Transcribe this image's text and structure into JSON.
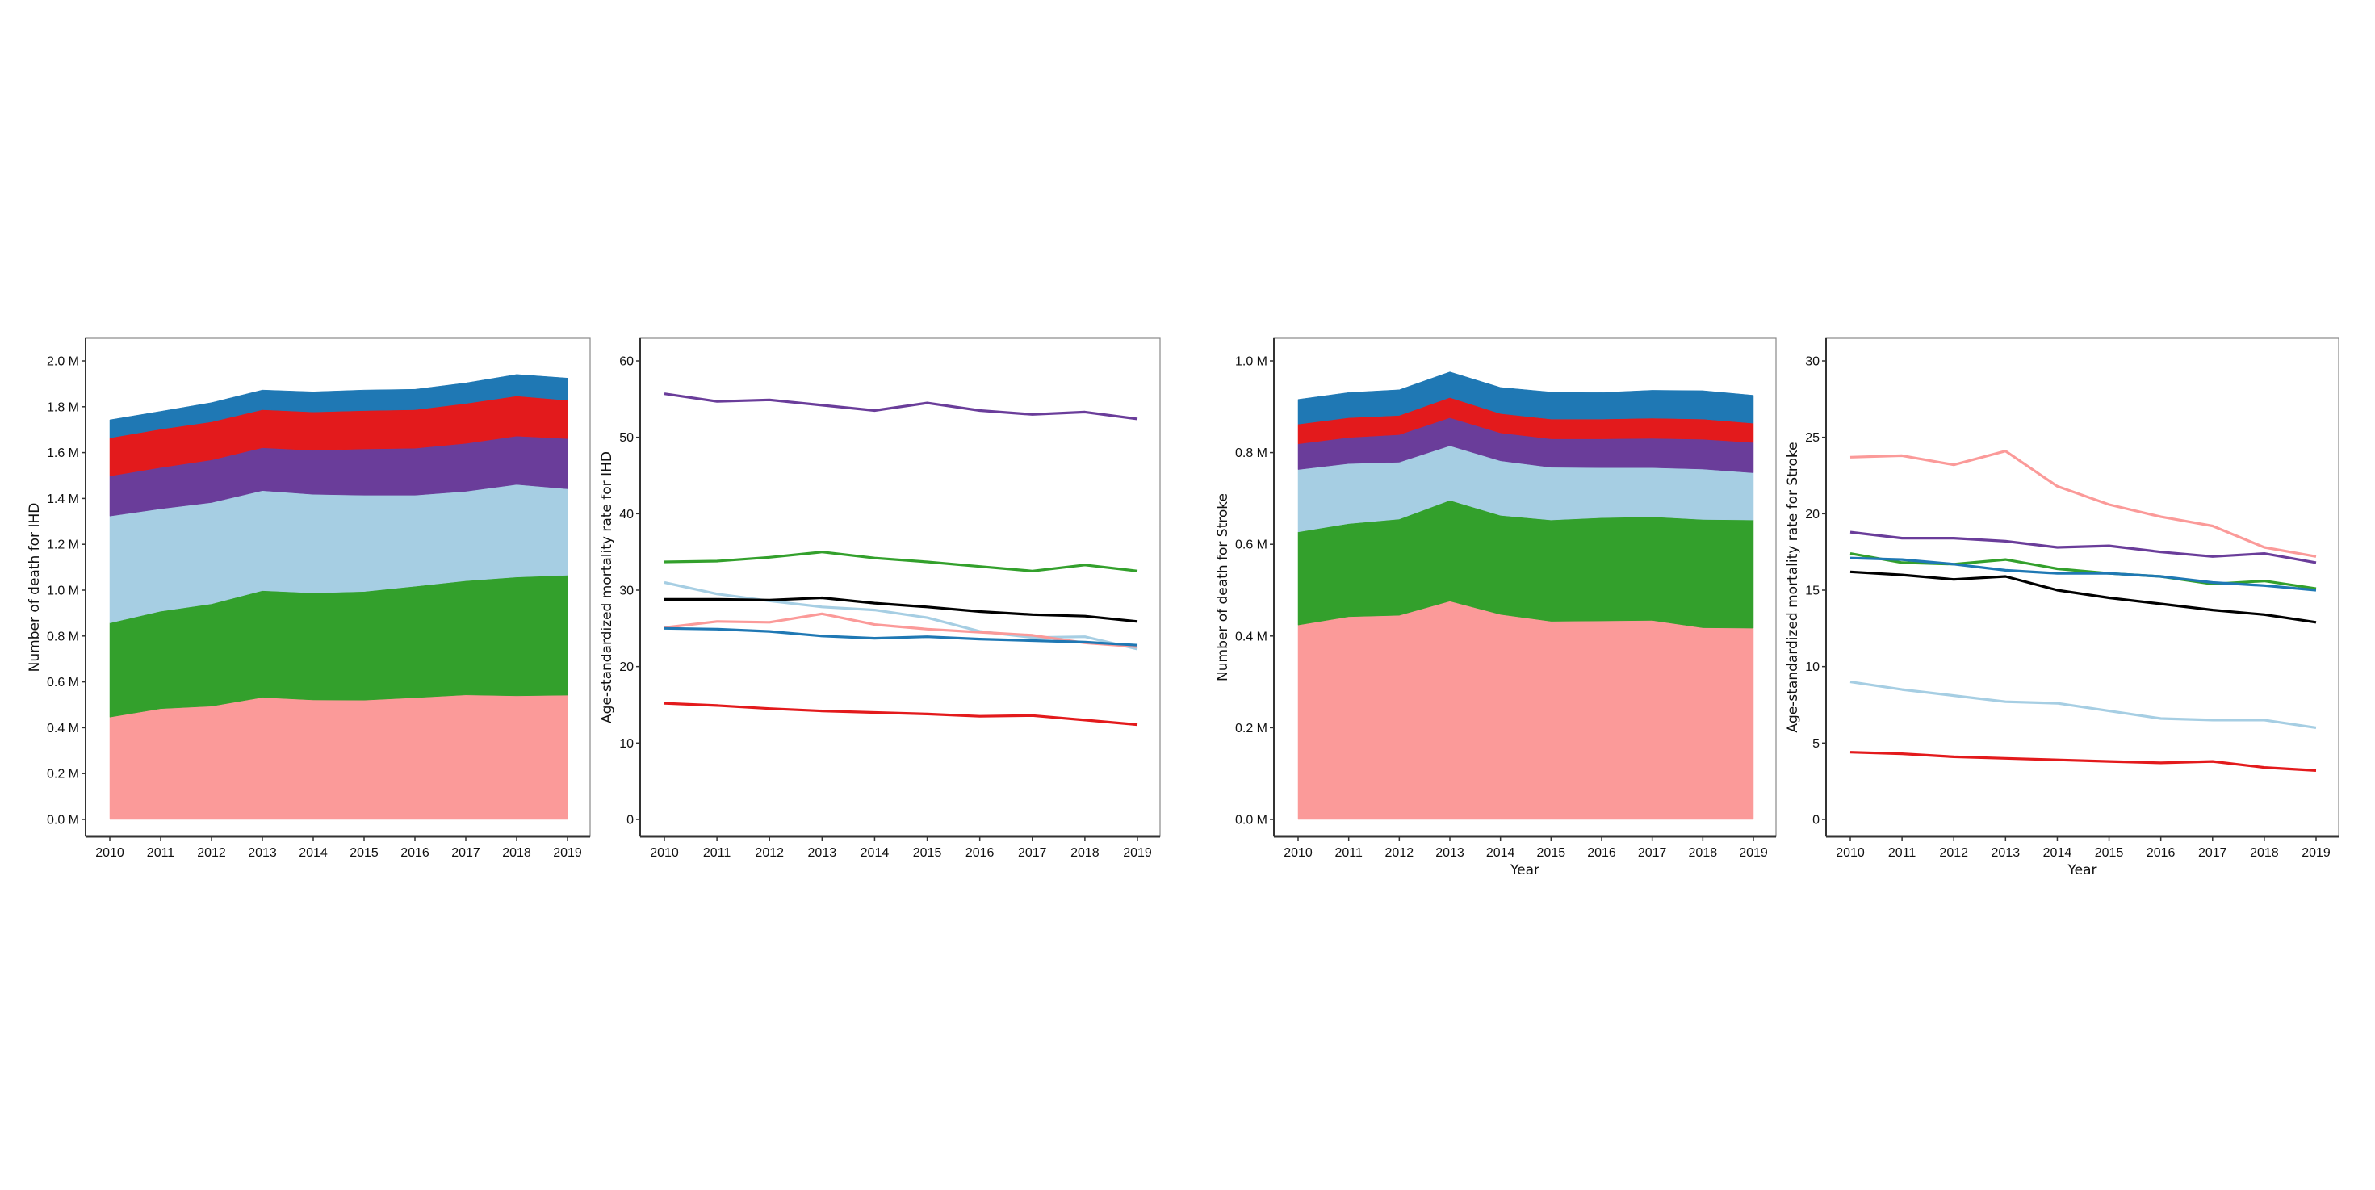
{
  "colors": {
    "pink": "#fb9a99",
    "green": "#33a02c",
    "lightblue": "#a6cee3",
    "purple": "#6a3d9a",
    "red": "#e31a1c",
    "blue": "#1f78b4",
    "black": "#000000"
  },
  "chart_data": [
    {
      "type": "area",
      "stacked": true,
      "ylabel": "Number of death for IHD",
      "xlabel": "",
      "x": [
        2010,
        2011,
        2012,
        2013,
        2014,
        2015,
        2016,
        2017,
        2018,
        2019
      ],
      "ylim": [
        0,
        2.0
      ],
      "yticks": [
        0,
        0.2,
        0.4,
        0.6,
        0.8,
        1.0,
        1.2,
        1.4,
        1.6,
        1.8,
        2.0
      ],
      "ytick_labels": [
        "0.0 M",
        "0.2 M",
        "0.4 M",
        "0.6 M",
        "0.8 M",
        "1.0 M",
        "1.2 M",
        "1.4 M",
        "1.6 M",
        "1.8 M",
        "2.0 M"
      ],
      "unit": "million deaths",
      "series": [
        {
          "color": "pink",
          "values": [
            0.446,
            0.483,
            0.494,
            0.532,
            0.521,
            0.52,
            0.531,
            0.543,
            0.539,
            0.542
          ]
        },
        {
          "color": "green",
          "values": [
            0.411,
            0.425,
            0.446,
            0.466,
            0.467,
            0.474,
            0.486,
            0.498,
            0.518,
            0.523
          ]
        },
        {
          "color": "lightblue",
          "values": [
            0.466,
            0.447,
            0.442,
            0.436,
            0.43,
            0.42,
            0.397,
            0.39,
            0.404,
            0.377
          ]
        },
        {
          "color": "purple",
          "values": [
            0.175,
            0.18,
            0.186,
            0.187,
            0.192,
            0.202,
            0.205,
            0.209,
            0.211,
            0.219
          ]
        },
        {
          "color": "red",
          "values": [
            0.166,
            0.167,
            0.166,
            0.166,
            0.167,
            0.167,
            0.168,
            0.174,
            0.175,
            0.167
          ]
        },
        {
          "color": "blue",
          "values": [
            0.079,
            0.078,
            0.084,
            0.086,
            0.088,
            0.09,
            0.089,
            0.09,
            0.094,
            0.097
          ]
        }
      ]
    },
    {
      "type": "line",
      "ylabel": "Age-standardized mortality rate for IHD",
      "xlabel": "",
      "x": [
        2010,
        2011,
        2012,
        2013,
        2014,
        2015,
        2016,
        2017,
        2018,
        2019
      ],
      "ylim": [
        0,
        60
      ],
      "yticks": [
        0,
        10,
        20,
        30,
        40,
        50,
        60
      ],
      "ytick_labels": [
        "0",
        "10",
        "20",
        "30",
        "40",
        "50",
        "60"
      ],
      "series": [
        {
          "color": "purple",
          "values": [
            55.7,
            54.7,
            54.9,
            54.2,
            53.5,
            54.5,
            53.5,
            53.0,
            53.3,
            52.4
          ]
        },
        {
          "color": "green",
          "values": [
            33.7,
            33.8,
            34.3,
            35.0,
            34.2,
            33.7,
            33.1,
            32.5,
            33.3,
            32.5
          ]
        },
        {
          "color": "lightblue",
          "values": [
            31.0,
            29.5,
            28.6,
            27.8,
            27.4,
            26.4,
            24.6,
            23.8,
            23.9,
            22.3
          ]
        },
        {
          "color": "black",
          "values": [
            28.8,
            28.8,
            28.7,
            29.0,
            28.3,
            27.8,
            27.2,
            26.8,
            26.6,
            25.9
          ]
        },
        {
          "color": "pink",
          "values": [
            25.1,
            25.9,
            25.8,
            26.9,
            25.5,
            24.9,
            24.5,
            24.1,
            23.1,
            22.6
          ]
        },
        {
          "color": "blue",
          "values": [
            25.0,
            24.9,
            24.6,
            24.0,
            23.7,
            23.9,
            23.6,
            23.4,
            23.2,
            22.8
          ]
        },
        {
          "color": "red",
          "values": [
            15.2,
            14.9,
            14.5,
            14.2,
            14.0,
            13.8,
            13.5,
            13.6,
            13.0,
            12.4
          ]
        }
      ]
    },
    {
      "type": "area",
      "stacked": true,
      "ylabel": "Number of death for Stroke",
      "xlabel": "Year",
      "x": [
        2010,
        2011,
        2012,
        2013,
        2014,
        2015,
        2016,
        2017,
        2018,
        2019
      ],
      "ylim": [
        0,
        1.0
      ],
      "yticks": [
        0,
        0.2,
        0.4,
        0.6,
        0.8,
        1.0
      ],
      "ytick_labels": [
        "0.0 M",
        "0.2 M",
        "0.4 M",
        "0.6 M",
        "0.8 M",
        "1.0 M"
      ],
      "unit": "million deaths",
      "series": [
        {
          "color": "pink",
          "values": [
            0.424,
            0.442,
            0.445,
            0.476,
            0.447,
            0.432,
            0.433,
            0.434,
            0.418,
            0.417
          ]
        },
        {
          "color": "green",
          "values": [
            0.203,
            0.203,
            0.21,
            0.22,
            0.216,
            0.221,
            0.225,
            0.226,
            0.236,
            0.236
          ]
        },
        {
          "color": "lightblue",
          "values": [
            0.136,
            0.131,
            0.124,
            0.119,
            0.119,
            0.115,
            0.109,
            0.107,
            0.11,
            0.103
          ]
        },
        {
          "color": "purple",
          "values": [
            0.056,
            0.057,
            0.06,
            0.061,
            0.061,
            0.062,
            0.063,
            0.064,
            0.065,
            0.066
          ]
        },
        {
          "color": "red",
          "values": [
            0.043,
            0.043,
            0.042,
            0.044,
            0.042,
            0.043,
            0.043,
            0.044,
            0.044,
            0.042
          ]
        },
        {
          "color": "blue",
          "values": [
            0.054,
            0.055,
            0.056,
            0.056,
            0.057,
            0.059,
            0.058,
            0.061,
            0.062,
            0.061
          ]
        }
      ]
    },
    {
      "type": "line",
      "ylabel": "Age-standardized mortality rate for Stroke",
      "xlabel": "Year",
      "x": [
        2010,
        2011,
        2012,
        2013,
        2014,
        2015,
        2016,
        2017,
        2018,
        2019
      ],
      "ylim": [
        0,
        30
      ],
      "yticks": [
        0,
        5,
        10,
        15,
        20,
        25,
        30
      ],
      "ytick_labels": [
        "0",
        "5",
        "10",
        "15",
        "20",
        "25",
        "30"
      ],
      "series": [
        {
          "color": "pink",
          "values": [
            23.7,
            23.8,
            23.2,
            24.1,
            21.8,
            20.6,
            19.8,
            19.2,
            17.8,
            17.2
          ]
        },
        {
          "color": "purple",
          "values": [
            18.8,
            18.4,
            18.4,
            18.2,
            17.8,
            17.9,
            17.5,
            17.2,
            17.4,
            16.8
          ]
        },
        {
          "color": "green",
          "values": [
            17.4,
            16.8,
            16.7,
            17.0,
            16.4,
            16.1,
            15.9,
            15.4,
            15.6,
            15.1
          ]
        },
        {
          "color": "blue",
          "values": [
            17.1,
            17.0,
            16.7,
            16.3,
            16.1,
            16.1,
            15.9,
            15.5,
            15.3,
            15.0
          ]
        },
        {
          "color": "black",
          "values": [
            16.2,
            16.0,
            15.7,
            15.9,
            15.0,
            14.5,
            14.1,
            13.7,
            13.4,
            12.9
          ]
        },
        {
          "color": "lightblue",
          "values": [
            9.0,
            8.5,
            8.1,
            7.7,
            7.6,
            7.1,
            6.6,
            6.5,
            6.5,
            6.0
          ]
        },
        {
          "color": "red",
          "values": [
            4.4,
            4.3,
            4.1,
            4.0,
            3.9,
            3.8,
            3.7,
            3.8,
            3.4,
            3.2
          ]
        }
      ]
    }
  ]
}
